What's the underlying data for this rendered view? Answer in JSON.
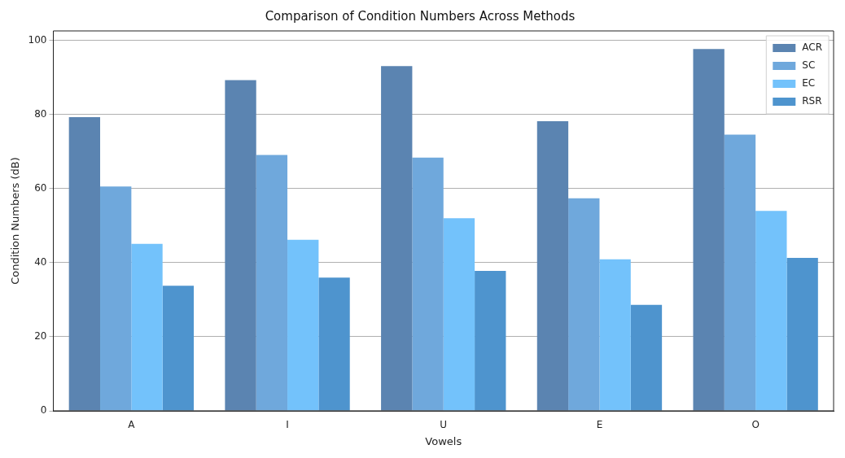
{
  "chart_data": {
    "type": "bar",
    "title": "Comparison of Condition Numbers Across Methods",
    "xlabel": "Vowels",
    "ylabel": "Condition Numbers (dB)",
    "categories": [
      "A",
      "I",
      "U",
      "E",
      "O"
    ],
    "series": [
      {
        "name": "ACR",
        "color": "#5b84b1",
        "values": [
          79.3,
          89.3,
          93.1,
          78.2,
          97.7
        ]
      },
      {
        "name": "SC",
        "color": "#6fa8dc",
        "values": [
          60.6,
          69.1,
          68.4,
          57.4,
          74.6
        ]
      },
      {
        "name": "EC",
        "color": "#73c2fb",
        "values": [
          45.1,
          46.2,
          52.0,
          40.9,
          54.0
        ]
      },
      {
        "name": "RSR",
        "color": "#4e94ce",
        "values": [
          33.8,
          36.0,
          37.8,
          28.6,
          41.3
        ]
      }
    ],
    "ylim": [
      0,
      102.6
    ],
    "yticks": [
      0,
      20,
      40,
      60,
      80,
      100
    ],
    "grid": "y",
    "legend": "top right"
  }
}
